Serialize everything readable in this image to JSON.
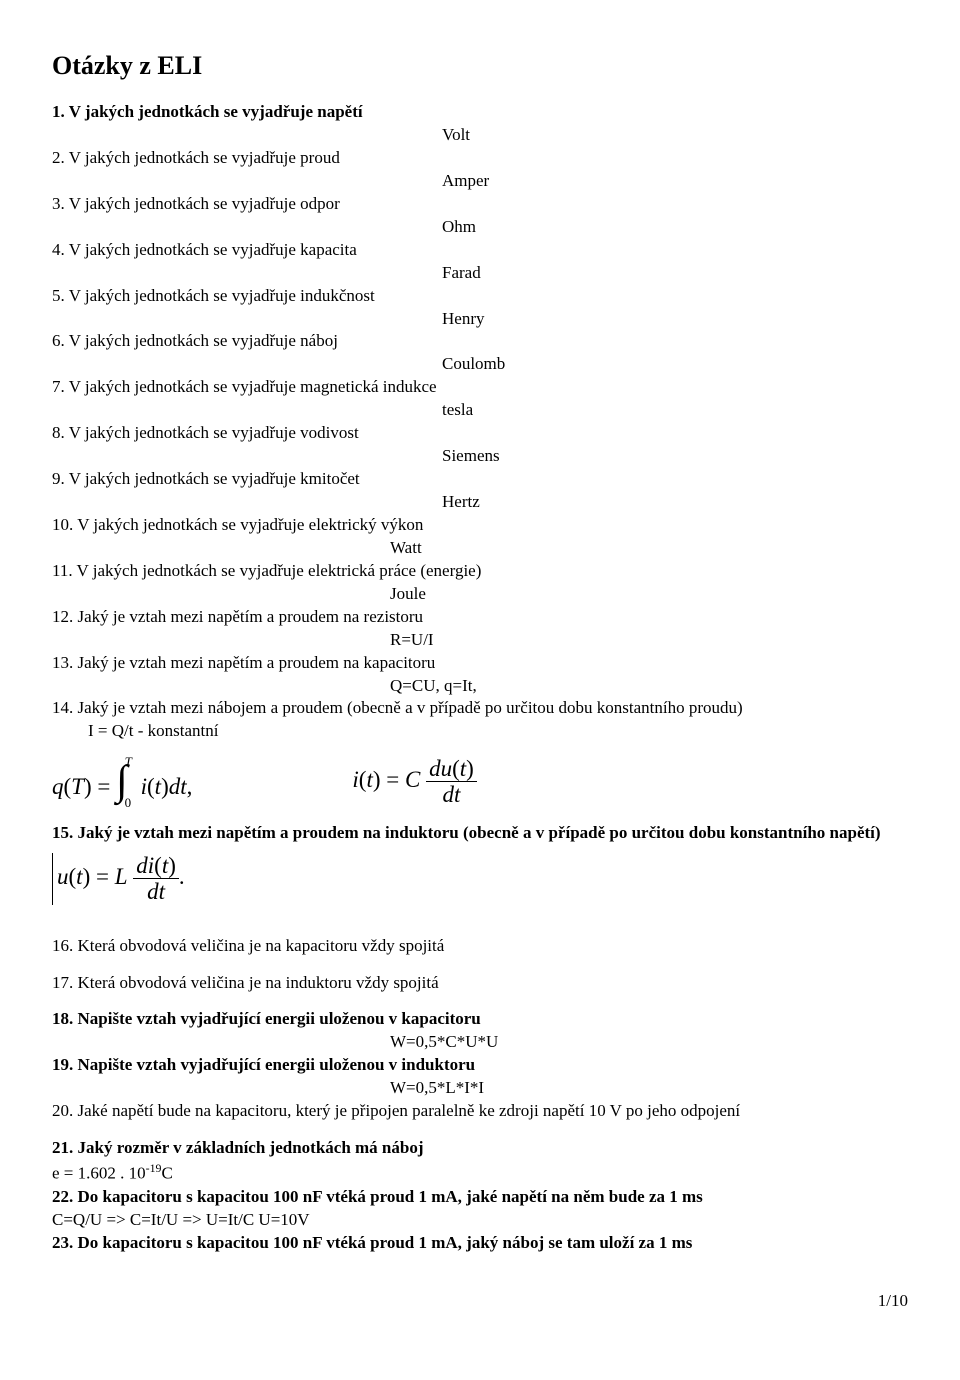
{
  "title": "Otázky z ELI",
  "qas": [
    {
      "q": "1. V jakých jednotkách se vyjadřuje napětí",
      "a": "Volt",
      "qbold": true
    },
    {
      "q": "2. V jakých jednotkách se vyjadřuje proud",
      "a": "Amper",
      "qbold": false
    },
    {
      "q": "3. V jakých jednotkách se vyjadřuje odpor",
      "a": "Ohm",
      "qbold": false
    },
    {
      "q": "4. V jakých jednotkách se vyjadřuje kapacita",
      "a": "Farad",
      "qbold": false
    },
    {
      "q": "5. V jakých jednotkách se vyjadřuje indukčnost",
      "a": "Henry",
      "qbold": false
    },
    {
      "q": "6. V jakých jednotkách se vyjadřuje náboj",
      "a": "Coulomb",
      "qbold": false
    },
    {
      "q": "7. V jakých jednotkách se vyjadřuje magnetická indukce",
      "a": "tesla",
      "qbold": false
    },
    {
      "q": "8. V jakých jednotkách se vyjadřuje vodivost",
      "a": "Siemens",
      "qbold": false
    },
    {
      "q": "9. V jakých jednotkách se vyjadřuje kmitočet",
      "a": "Hertz",
      "qbold": false
    },
    {
      "q": "10. V jakých jednotkách se vyjadřuje elektrický výkon",
      "a": "Watt",
      "qbold": false,
      "short": true
    },
    {
      "q": "11. V jakých jednotkách se vyjadřuje elektrická práce (energie)",
      "a": "Joule",
      "qbold": false,
      "short": true
    },
    {
      "q": "12. Jaký je vztah mezi napětím a proudem na rezistoru",
      "a": "R=U/I",
      "qbold": false,
      "short": true
    },
    {
      "q": "13. Jaký je vztah mezi napětím a proudem na kapacitoru",
      "a": "Q=CU, q=It,",
      "qbold": false,
      "short": true
    }
  ],
  "q14": "14. Jaký je vztah mezi nábojem a proudem (obecně a v případě po určitou dobu konstantního proudu)",
  "q14_sub": "I = Q/t  - konstantní",
  "q15": "15. Jaký je vztah mezi napětím a proudem na induktoru (obecně a v případě po určitou dobu konstantního napětí)",
  "q16": "16. Která obvodová veličina je na kapacitoru vždy spojitá",
  "q17": "17. Která obvodová veličina je na induktoru vždy spojitá",
  "q18": "18. Napište vztah vyjadřující energii uloženou v kapacitoru",
  "q18a": "W=0,5*C*U*U",
  "q19": "19. Napište vztah vyjadřující energii uloženou v induktoru",
  "q19a": "W=0,5*L*I*I",
  "q20": "20. Jaké napětí bude na kapacitoru, který je připojen paralelně ke zdroji napětí 10 V po jeho odpojení",
  "q21": "21. Jaký rozměr v základních jednotkách má náboj",
  "q21a_pre": "e = 1.602 . 10",
  "q21a_sup": "-19",
  "q21a_post": "C",
  "q22": "22. Do kapacitoru s kapacitou 100 nF vtéká proud 1 mA, jaké napětí na něm bude za 1 ms",
  "q22a": "C=Q/U => C=It/U => U=It/C U=10V",
  "q23": "23. Do kapacitoru s kapacitou 100 nF vtéká proud 1 mA, jaký náboj se tam uloží za 1 ms",
  "page": "1/10",
  "colors": {
    "text": "#000000",
    "background": "#ffffff"
  },
  "fonts": {
    "body_family": "Times New Roman",
    "body_size_pt": 13,
    "title_size_pt": 20
  }
}
